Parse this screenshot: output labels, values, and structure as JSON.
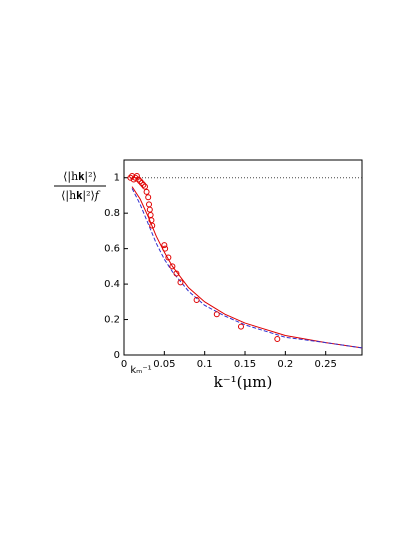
{
  "chart_data": {
    "type": "scatter",
    "xlabel": "k⁻¹(μm)",
    "ylabel_numerator": "⟨|h𝐤|²⟩",
    "ylabel_denominator": "⟨|h𝐤|²⟩𝑓",
    "annotation": "kₘ⁻¹",
    "xlim": [
      0,
      0.295
    ],
    "ylim": [
      0,
      1.1
    ],
    "xticks": [
      0,
      0.05,
      0.1,
      0.15,
      0.2,
      0.25
    ],
    "yticks": [
      0,
      0.2,
      0.4,
      0.6,
      0.8,
      1
    ],
    "reference_line": 1,
    "points": {
      "color": "#e00000",
      "x": [
        0.008,
        0.01,
        0.012,
        0.014,
        0.016,
        0.018,
        0.02,
        0.022,
        0.024,
        0.026,
        0.028,
        0.03,
        0.031,
        0.032,
        0.033,
        0.034,
        0.035,
        0.05,
        0.051,
        0.055,
        0.06,
        0.065,
        0.07,
        0.09,
        0.115,
        0.145,
        0.19
      ],
      "y": [
        1.0,
        1.01,
        0.99,
        1.0,
        1.01,
        0.99,
        0.98,
        0.97,
        0.96,
        0.95,
        0.92,
        0.89,
        0.85,
        0.82,
        0.79,
        0.76,
        0.73,
        0.62,
        0.6,
        0.55,
        0.5,
        0.46,
        0.41,
        0.31,
        0.23,
        0.16,
        0.09
      ]
    },
    "series": [
      {
        "color": "#e00000",
        "dash": false,
        "x": [
          0.01,
          0.02,
          0.03,
          0.04,
          0.05,
          0.06,
          0.08,
          0.1,
          0.125,
          0.15,
          0.2,
          0.25,
          0.295
        ],
        "values": [
          0.95,
          0.88,
          0.78,
          0.67,
          0.58,
          0.5,
          0.38,
          0.3,
          0.23,
          0.18,
          0.11,
          0.07,
          0.04
        ]
      },
      {
        "color": "#3030d0",
        "dash": true,
        "x": [
          0.01,
          0.02,
          0.03,
          0.04,
          0.05,
          0.06,
          0.08,
          0.1,
          0.125,
          0.15,
          0.2,
          0.25,
          0.295
        ],
        "values": [
          0.94,
          0.85,
          0.74,
          0.63,
          0.54,
          0.47,
          0.36,
          0.28,
          0.22,
          0.17,
          0.1,
          0.07,
          0.04
        ]
      }
    ]
  }
}
